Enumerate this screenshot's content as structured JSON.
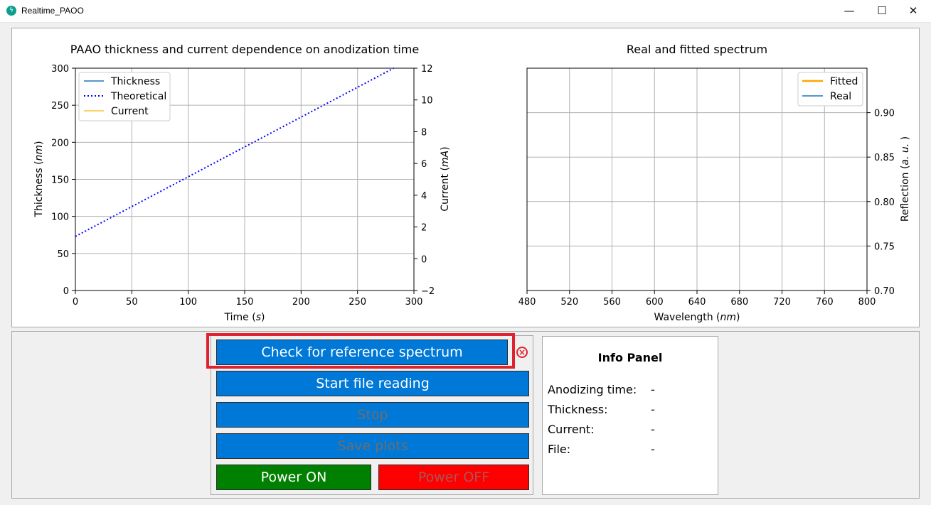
{
  "window": {
    "title": "Realtime_PAOO",
    "controls": {
      "minimize": "—",
      "maximize": "☐",
      "close": "✕"
    }
  },
  "plots": {
    "left": {
      "title": "PAAO thickness and current dependence on anodization time",
      "xlabel": "Time (s)",
      "ylabel_left": "Thickness (nm)",
      "ylabel_right": "Current (mA)",
      "x_ticks": [
        "0",
        "50",
        "100",
        "150",
        "200",
        "250",
        "300"
      ],
      "y_ticks_left": [
        "0",
        "50",
        "100",
        "150",
        "200",
        "250",
        "300"
      ],
      "y_ticks_right": [
        "−2",
        "0",
        "2",
        "4",
        "6",
        "8",
        "10",
        "12"
      ],
      "legend": [
        "Thickness",
        "Theoretical",
        "Current"
      ]
    },
    "right": {
      "title": "Real and fitted spectrum",
      "xlabel": "Wavelength (nm)",
      "ylabel": "Reflection (a. u. )",
      "x_ticks": [
        "480",
        "520",
        "560",
        "600",
        "640",
        "680",
        "720",
        "760",
        "800"
      ],
      "y_ticks": [
        "0.70",
        "0.75",
        "0.80",
        "0.85",
        "0.90"
      ],
      "legend": [
        "Fitted",
        "Real"
      ]
    }
  },
  "chart_data": [
    {
      "type": "line",
      "title": "PAAO thickness and current dependence on anodization time",
      "xlabel": "Time (s)",
      "ylabel": "Thickness (nm)",
      "y2label": "Current (mA)",
      "xlim": [
        0,
        300
      ],
      "ylim": [
        0,
        300
      ],
      "y2lim": [
        -2,
        12
      ],
      "grid": true,
      "legend_position": "top-left",
      "series": [
        {
          "name": "Thickness",
          "style": "solid",
          "color": "#1f77b4",
          "x": [],
          "y": []
        },
        {
          "name": "Theoretical",
          "style": "dotted",
          "color": "#0000ff",
          "x": [
            0,
            282
          ],
          "y": [
            73,
            300
          ]
        },
        {
          "name": "Current",
          "style": "solid",
          "color": "#ffbf2e",
          "axis": "right",
          "x": [],
          "y": []
        }
      ]
    },
    {
      "type": "line",
      "title": "Real and fitted spectrum",
      "xlabel": "Wavelength (nm)",
      "ylabel": "Reflection (a. u. )",
      "xlim": [
        480,
        800
      ],
      "ylim": [
        0.7,
        0.95
      ],
      "grid": true,
      "legend_position": "top-right",
      "series": [
        {
          "name": "Fitted",
          "color": "#ffa500",
          "x": [],
          "y": []
        },
        {
          "name": "Real",
          "color": "#1f77b4",
          "x": [],
          "y": []
        }
      ]
    }
  ],
  "controls": {
    "check_reference": "Check for reference spectrum",
    "start_reading": "Start file reading",
    "stop": "Stop",
    "save_plots": "Save plots",
    "power_on": "Power ON",
    "power_off": "Power OFF",
    "reference_status_icon": "close-circle-icon"
  },
  "info_panel": {
    "title": "Info Panel",
    "rows": [
      {
        "label": "Anodizing time:",
        "value": "-"
      },
      {
        "label": "Thickness:",
        "value": "-"
      },
      {
        "label": "Current:",
        "value": "-"
      },
      {
        "label": "File:",
        "value": "-"
      }
    ]
  },
  "colors": {
    "button_blue": "#0078d7",
    "power_on_green": "#008000",
    "power_off_red": "#ff0000",
    "highlight_red": "#e0222f"
  }
}
